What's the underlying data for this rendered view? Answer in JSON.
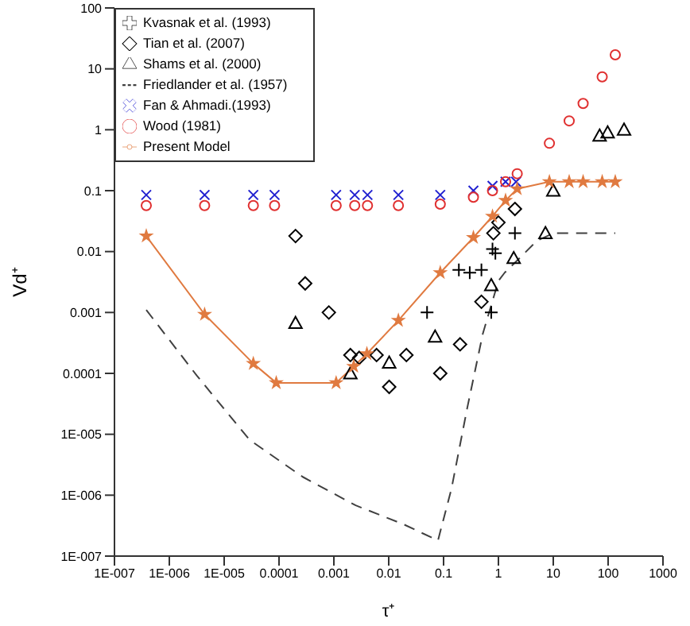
{
  "chart_data": {
    "type": "scatter",
    "xlabel": "τ⁺",
    "ylabel": "Vd⁺",
    "log": "xy",
    "legend": "top left",
    "xlim": [
      1e-07,
      1000
    ],
    "xticks": [
      {
        "value": 1e-07,
        "label": "1E-007"
      },
      {
        "value": 1e-06,
        "label": "1E-006"
      },
      {
        "value": 1e-05,
        "label": "1E-005"
      },
      0.0001,
      0.001,
      0.01,
      0.1,
      1,
      10,
      100,
      1000
    ],
    "ylim": [
      1e-07,
      100
    ],
    "yticks": [
      {
        "value": 1e-07,
        "label": "1E-007"
      },
      {
        "value": 1e-06,
        "label": "1E-006"
      },
      {
        "value": 1e-05,
        "label": "1E-005"
      },
      0.0001,
      0.001,
      0.01,
      0.1,
      1,
      10,
      100
    ],
    "series": [
      {
        "name": "Kvasnak et al. (1993)",
        "marker": "cross",
        "color": "#000000",
        "x": [
          0.05,
          0.19,
          0.3,
          0.49,
          0.74,
          0.78,
          0.88,
          2.0
        ],
        "values": [
          0.001,
          0.005,
          0.0045,
          0.005,
          0.001,
          0.011,
          0.0094,
          0.02
        ]
      },
      {
        "name": "Tian et al. (2007)",
        "marker": "diamond",
        "color": "#000000",
        "x": [
          0.0002,
          0.0003,
          0.00081,
          0.002,
          0.0029,
          0.006,
          0.0102,
          0.021,
          0.087,
          0.2,
          0.49,
          0.81,
          1.0,
          2.0
        ],
        "values": [
          0.018,
          0.003,
          0.001,
          0.0002,
          0.00018,
          0.0002,
          6e-05,
          0.0002,
          0.0001,
          0.0003,
          0.0015,
          0.02,
          0.03,
          0.05
        ]
      },
      {
        "name": "Shams et al. (2000)",
        "marker": "triangle",
        "color": "#000000",
        "x": [
          0.0002,
          0.002,
          0.0102,
          0.07,
          0.74,
          1.9,
          7.2,
          10,
          70,
          98,
          195
        ],
        "values": [
          0.00067,
          0.0001,
          0.00015,
          0.0004,
          0.0028,
          0.0078,
          0.02,
          0.1,
          0.8,
          0.9,
          1.0
        ]
      },
      {
        "name": "Friedlander et al. (1957)",
        "type": "line",
        "marker": "none",
        "line_style": "dashed",
        "color": "#404040",
        "x": [
          3.8e-07,
          3.2e-06,
          2.9e-05,
          0.00027,
          0.0025,
          0.019,
          0.079,
          0.14,
          0.27,
          0.52,
          1.0,
          1.3,
          2.5,
          5,
          10,
          135
        ],
        "values": [
          0.0011,
          9.1e-05,
          8.1e-06,
          2e-06,
          6.8e-07,
          3.3e-07,
          1.8e-07,
          1.3e-06,
          2.7e-05,
          0.00045,
          0.0033,
          0.0045,
          0.008,
          0.015,
          0.02,
          0.02
        ]
      },
      {
        "name": "Fan & Ahmadi.(1993)",
        "marker": "x",
        "color": "#2020d0",
        "x": [
          3.8e-07,
          4.4e-06,
          3.4e-05,
          8.3e-05,
          0.0011,
          0.0024,
          0.0041,
          0.015,
          0.087,
          0.35,
          0.78,
          1.35,
          2.1
        ],
        "values": [
          0.085,
          0.085,
          0.085,
          0.085,
          0.085,
          0.085,
          0.085,
          0.085,
          0.085,
          0.1,
          0.12,
          0.14,
          0.14
        ]
      },
      {
        "name": "Wood (1981)",
        "marker": "circle",
        "color": "#e03030",
        "x": [
          3.8e-07,
          4.4e-06,
          3.4e-05,
          8.3e-05,
          0.0011,
          0.0024,
          0.0041,
          0.015,
          0.087,
          0.35,
          0.78,
          1.35,
          2.2,
          8.5,
          19.5,
          35,
          78,
          135
        ],
        "values": [
          0.057,
          0.057,
          0.057,
          0.057,
          0.057,
          0.057,
          0.057,
          0.057,
          0.06,
          0.078,
          0.1,
          0.14,
          0.19,
          0.6,
          1.4,
          2.7,
          7.4,
          17
        ]
      },
      {
        "name": "Present Model",
        "type": "line",
        "marker": "star",
        "line_style": "solid",
        "color": "#e07a40",
        "x": [
          3.8e-07,
          4.4e-06,
          3.4e-05,
          8.9e-05,
          0.0011,
          0.0023,
          0.004,
          0.015,
          0.087,
          0.35,
          0.78,
          1.35,
          2.2,
          8.5,
          19.5,
          35,
          78,
          135
        ],
        "values": [
          0.018,
          0.00093,
          0.000145,
          7e-05,
          7e-05,
          0.00013,
          0.00021,
          0.00074,
          0.0045,
          0.017,
          0.038,
          0.069,
          0.107,
          0.14,
          0.14,
          0.14,
          0.14,
          0.14
        ]
      }
    ]
  }
}
